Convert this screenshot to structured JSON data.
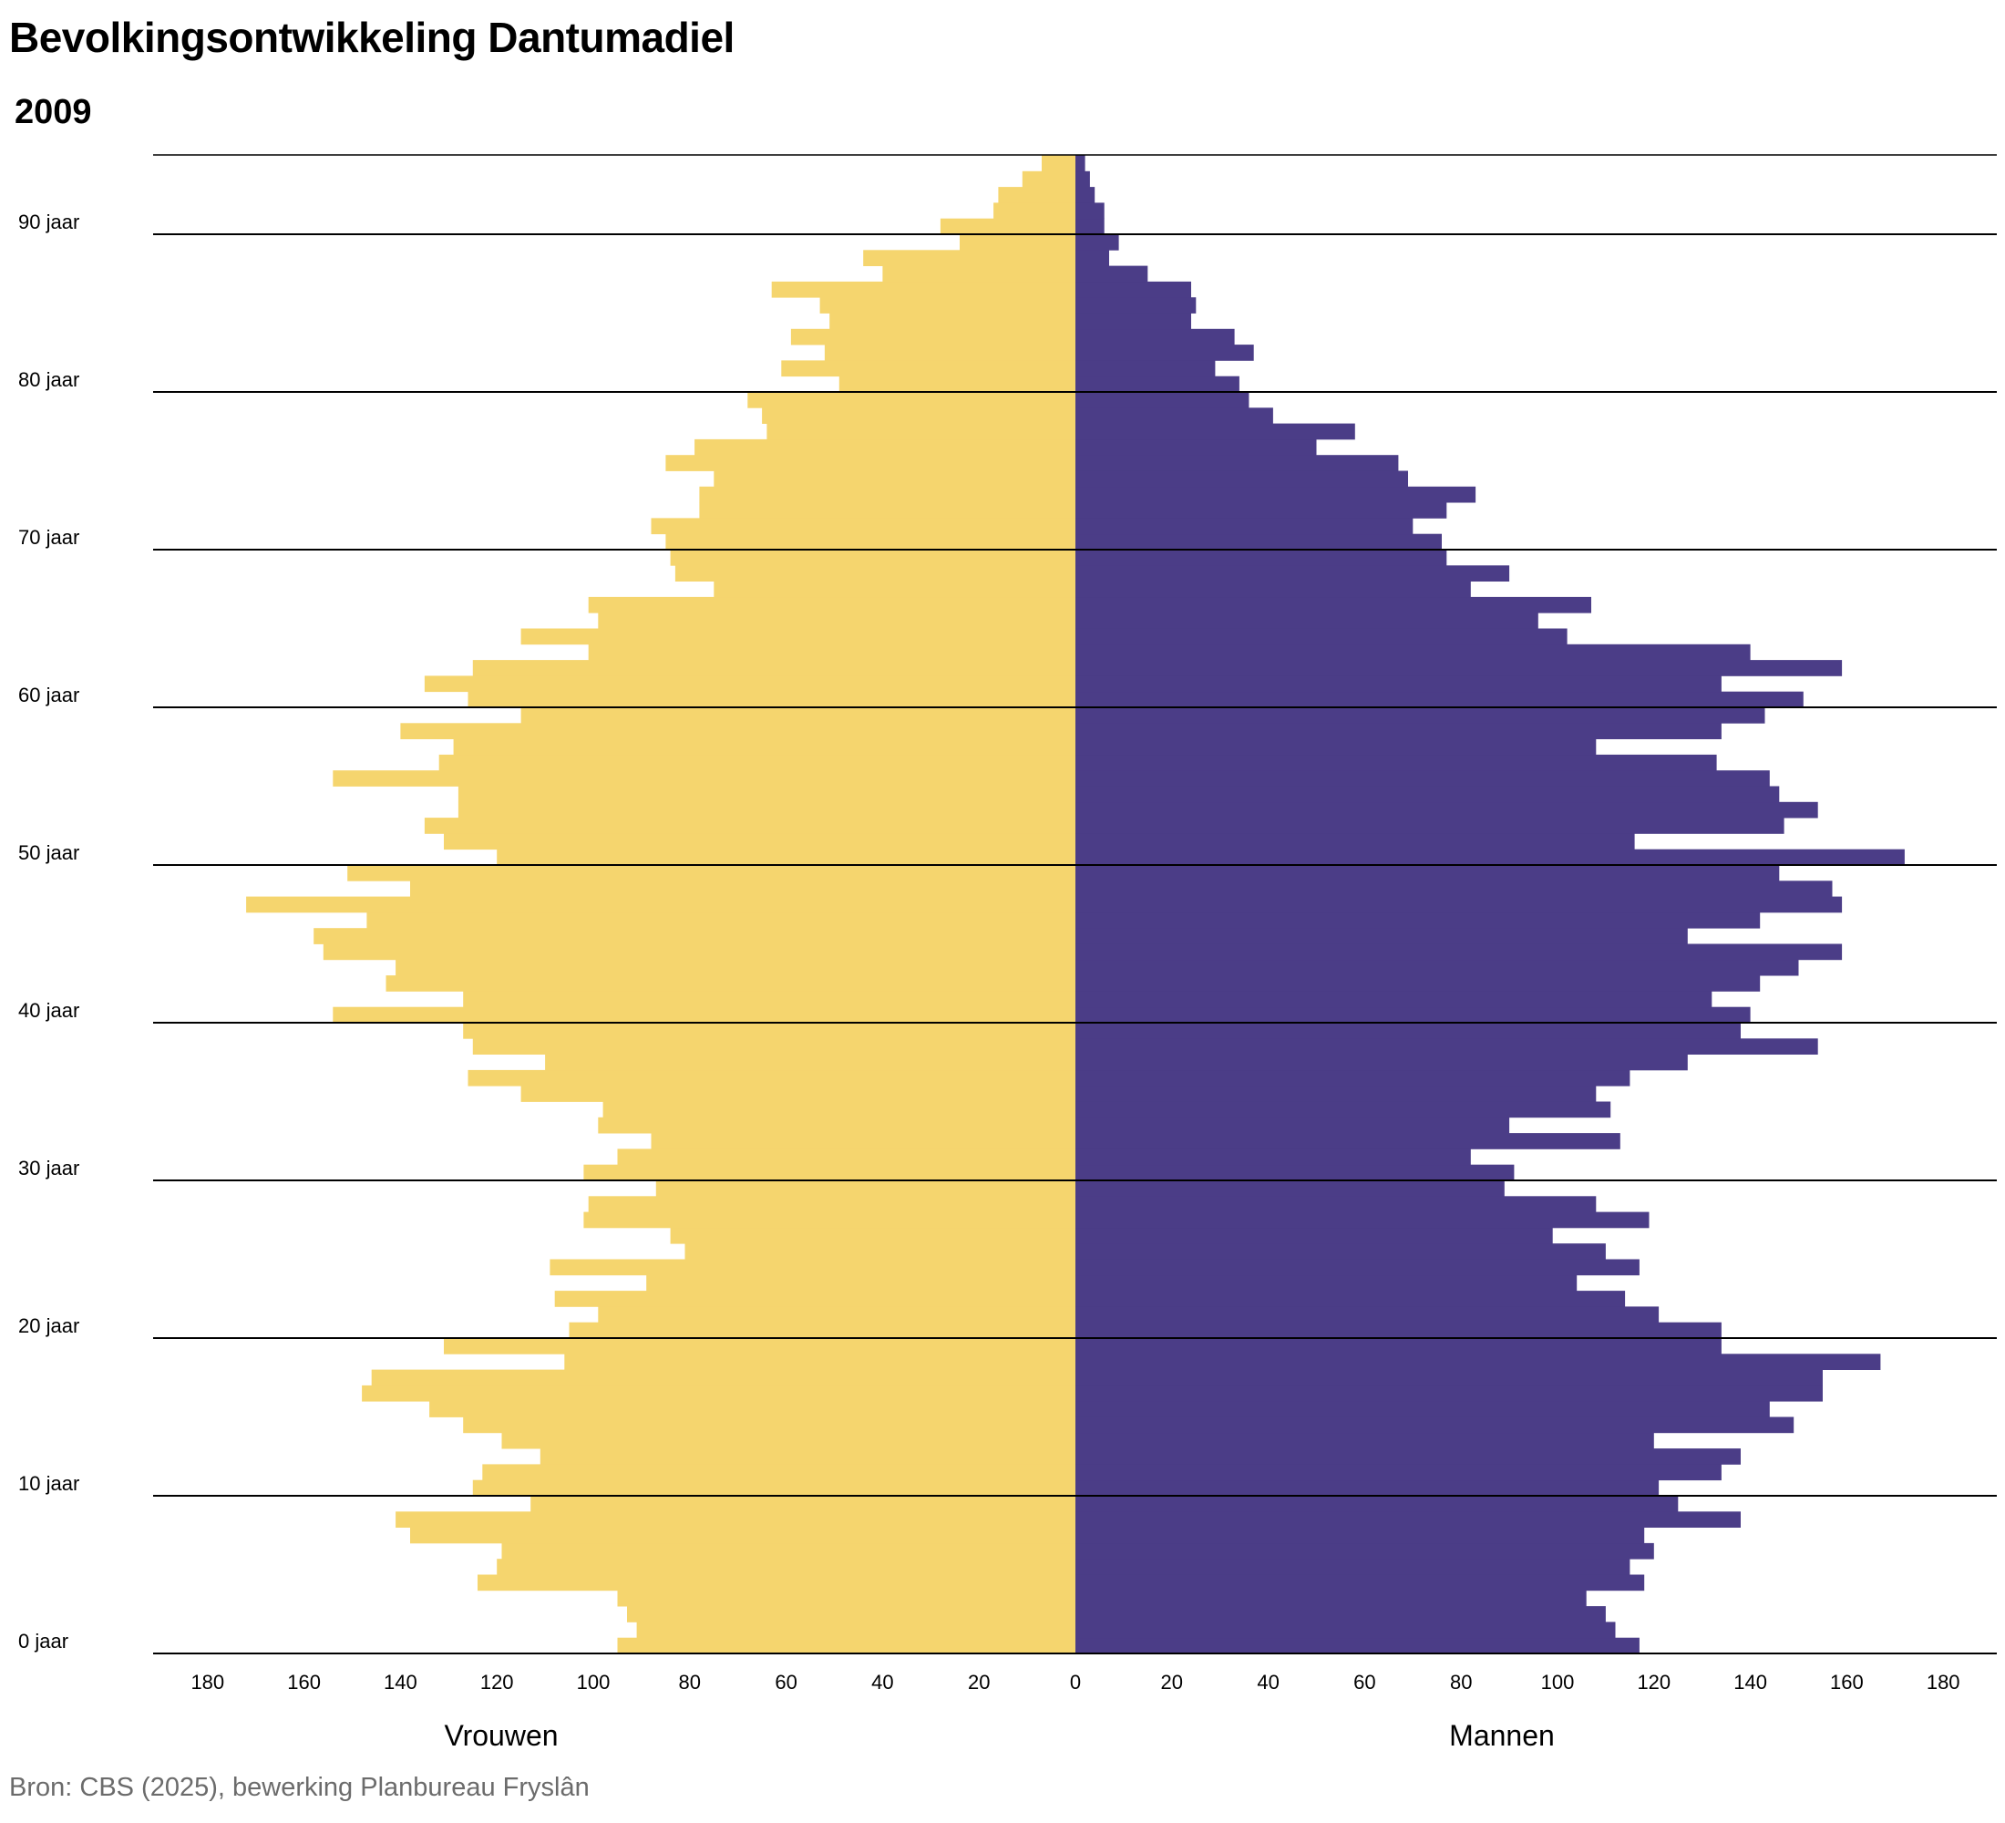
{
  "header": {
    "title": "Bevolkingsontwikkeling Dantumadiel",
    "year": "2009"
  },
  "footer": {
    "source": "Bron: CBS (2025), bewerking Planbureau Fryslân"
  },
  "chart_data": {
    "type": "bar",
    "orientation": "horizontal-population-pyramid",
    "title": "Bevolkingsontwikkeling Dantumadiel",
    "subtitle": "2009",
    "xlabel_left": "Vrouwen",
    "xlabel_right": "Mannen",
    "xlim": [
      -180,
      180
    ],
    "x_ticks": [
      180,
      160,
      140,
      120,
      100,
      80,
      60,
      40,
      20,
      0,
      20,
      40,
      60,
      80,
      100,
      120,
      140,
      160,
      180
    ],
    "y_tick_labels": [
      "0 jaar",
      "10 jaar",
      "20 jaar",
      "30 jaar",
      "40 jaar",
      "50 jaar",
      "60 jaar",
      "70 jaar",
      "80 jaar",
      "90 jaar"
    ],
    "y_tick_ages": [
      0,
      10,
      20,
      30,
      40,
      50,
      60,
      70,
      80,
      90
    ],
    "grid": "horizontal every 10 years",
    "ages": [
      0,
      1,
      2,
      3,
      4,
      5,
      6,
      7,
      8,
      9,
      10,
      11,
      12,
      13,
      14,
      15,
      16,
      17,
      18,
      19,
      20,
      21,
      22,
      23,
      24,
      25,
      26,
      27,
      28,
      29,
      30,
      31,
      32,
      33,
      34,
      35,
      36,
      37,
      38,
      39,
      40,
      41,
      42,
      43,
      44,
      45,
      46,
      47,
      48,
      49,
      50,
      51,
      52,
      53,
      54,
      55,
      56,
      57,
      58,
      59,
      60,
      61,
      62,
      63,
      64,
      65,
      66,
      67,
      68,
      69,
      70,
      71,
      72,
      73,
      74,
      75,
      76,
      77,
      78,
      79,
      80,
      81,
      82,
      83,
      84,
      85,
      86,
      87,
      88,
      89,
      90,
      91,
      92,
      93,
      94
    ],
    "series": [
      {
        "name": "Vrouwen",
        "side": "left",
        "color": "#F5D56E",
        "values": [
          95,
          91,
          93,
          95,
          124,
          120,
          119,
          138,
          141,
          113,
          125,
          123,
          111,
          119,
          127,
          134,
          148,
          146,
          106,
          131,
          105,
          99,
          108,
          89,
          109,
          81,
          84,
          102,
          101,
          87,
          102,
          95,
          88,
          99,
          98,
          115,
          126,
          110,
          125,
          127,
          154,
          127,
          143,
          141,
          156,
          158,
          147,
          172,
          138,
          151,
          120,
          131,
          135,
          128,
          128,
          154,
          132,
          129,
          140,
          115,
          126,
          135,
          125,
          101,
          115,
          99,
          101,
          75,
          83,
          84,
          85,
          88,
          78,
          78,
          75,
          85,
          79,
          64,
          65,
          68,
          49,
          61,
          52,
          59,
          51,
          53,
          63,
          40,
          44,
          24,
          28,
          17,
          16,
          11,
          7
        ]
      },
      {
        "name": "Mannen",
        "side": "right",
        "color": "#4B3D87",
        "values": [
          117,
          112,
          110,
          106,
          118,
          115,
          120,
          118,
          138,
          125,
          121,
          134,
          138,
          120,
          149,
          144,
          155,
          155,
          167,
          134,
          134,
          121,
          114,
          104,
          117,
          110,
          99,
          119,
          108,
          89,
          91,
          82,
          113,
          90,
          111,
          108,
          115,
          127,
          154,
          138,
          140,
          132,
          142,
          150,
          159,
          127,
          142,
          159,
          157,
          146,
          172,
          116,
          147,
          154,
          146,
          144,
          133,
          108,
          134,
          143,
          151,
          134,
          159,
          140,
          102,
          96,
          107,
          82,
          90,
          77,
          76,
          70,
          77,
          83,
          69,
          67,
          50,
          58,
          41,
          36,
          34,
          29,
          37,
          33,
          24,
          25,
          24,
          15,
          7,
          9,
          6,
          6,
          4,
          3,
          2
        ]
      }
    ]
  }
}
